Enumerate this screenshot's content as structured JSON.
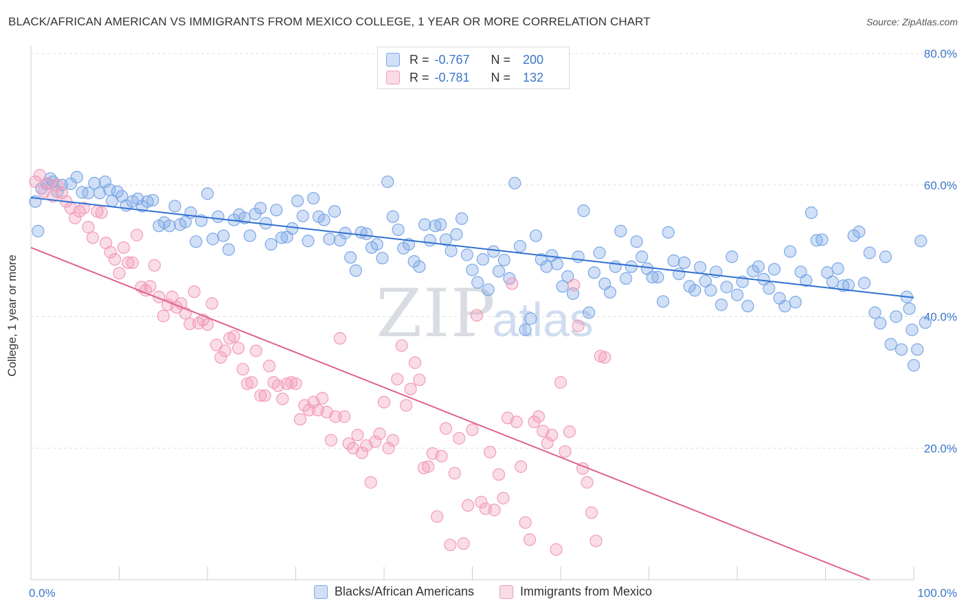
{
  "title": "BLACK/AFRICAN AMERICAN VS IMMIGRANTS FROM MEXICO COLLEGE, 1 YEAR OR MORE CORRELATION CHART",
  "source": "Source: ZipAtlas.com",
  "watermark": {
    "zip": "ZIP",
    "atlas": "atlas"
  },
  "stats": [
    {
      "r_label": "R =",
      "r_value": "-0.767",
      "n_label": "N =",
      "n_value": "200",
      "color": "#7aa6e6"
    },
    {
      "r_label": "R =",
      "r_value": "-0.781",
      "n_label": "N =",
      "n_value": "132",
      "color": "#f29ab8"
    }
  ],
  "legend": [
    {
      "label": "Blacks/African Americans",
      "color": "#7aa6e6"
    },
    {
      "label": "Immigrants from Mexico",
      "color": "#f29ab8"
    }
  ],
  "chart_data": {
    "type": "scatter",
    "title": "BLACK/AFRICAN AMERICAN VS IMMIGRANTS FROM MEXICO COLLEGE, 1 YEAR OR MORE CORRELATION CHART",
    "xlabel": "",
    "ylabel": "College, 1 year or more",
    "xlim": [
      0,
      100
    ],
    "ylim": [
      0,
      80
    ],
    "x_tick_labels": [
      "0.0%",
      "100.0%"
    ],
    "y_ticks": [
      20,
      40,
      60,
      80
    ],
    "y_tick_labels": [
      "20.0%",
      "40.0%",
      "60.0%",
      "80.0%"
    ],
    "grid": true,
    "legend_position": "bottom",
    "series": [
      {
        "name": "Blacks/African Americans",
        "color": "#7aa6e6",
        "line_color": "#2f6fd0",
        "trend": {
          "x": [
            0,
            100
          ],
          "y": [
            58.1,
            42.9
          ]
        },
        "points": [
          [
            0.5,
            57.5
          ],
          [
            0.8,
            53.0
          ],
          [
            1.2,
            59.5
          ],
          [
            1.8,
            60.2
          ],
          [
            2.2,
            61.0
          ],
          [
            2.5,
            60.5
          ],
          [
            3.0,
            59.0
          ],
          [
            3.5,
            60.0
          ],
          [
            4.5,
            60.2
          ],
          [
            5.2,
            61.2
          ],
          [
            5.8,
            58.9
          ],
          [
            6.5,
            58.8
          ],
          [
            7.2,
            60.3
          ],
          [
            7.8,
            58.8
          ],
          [
            8.4,
            60.5
          ],
          [
            8.9,
            59.3
          ],
          [
            9.2,
            57.6
          ],
          [
            9.8,
            59.0
          ],
          [
            10.3,
            58.3
          ],
          [
            10.8,
            56.9
          ],
          [
            11.5,
            57.5
          ],
          [
            12.1,
            57.9
          ],
          [
            12.6,
            56.8
          ],
          [
            13.2,
            57.5
          ],
          [
            13.8,
            57.7
          ],
          [
            14.5,
            53.8
          ],
          [
            15.1,
            54.3
          ],
          [
            15.7,
            53.8
          ],
          [
            16.3,
            56.8
          ],
          [
            16.9,
            54.0
          ],
          [
            17.5,
            54.4
          ],
          [
            18.1,
            55.8
          ],
          [
            18.7,
            51.4
          ],
          [
            19.3,
            54.6
          ],
          [
            20.0,
            58.7
          ],
          [
            20.6,
            51.8
          ],
          [
            21.2,
            55.2
          ],
          [
            21.8,
            52.3
          ],
          [
            22.4,
            50.2
          ],
          [
            23.0,
            54.7
          ],
          [
            23.6,
            55.5
          ],
          [
            24.2,
            55.0
          ],
          [
            24.8,
            52.3
          ],
          [
            25.4,
            55.6
          ],
          [
            26.0,
            56.5
          ],
          [
            26.6,
            54.2
          ],
          [
            27.2,
            51.0
          ],
          [
            27.8,
            56.2
          ],
          [
            28.4,
            52.0
          ],
          [
            29.0,
            52.1
          ],
          [
            29.6,
            53.4
          ],
          [
            30.2,
            57.6
          ],
          [
            30.8,
            55.3
          ],
          [
            31.4,
            51.5
          ],
          [
            32.0,
            58.0
          ],
          [
            32.6,
            55.2
          ],
          [
            33.2,
            54.7
          ],
          [
            33.8,
            51.8
          ],
          [
            34.4,
            56.0
          ],
          [
            35.0,
            51.6
          ],
          [
            35.6,
            52.7
          ],
          [
            36.2,
            49.0
          ],
          [
            36.8,
            47.0
          ],
          [
            37.4,
            52.8
          ],
          [
            38.0,
            52.6
          ],
          [
            38.6,
            50.5
          ],
          [
            39.2,
            51.0
          ],
          [
            39.8,
            48.9
          ],
          [
            40.4,
            60.5
          ],
          [
            41.0,
            55.2
          ],
          [
            41.6,
            53.2
          ],
          [
            42.2,
            50.4
          ],
          [
            42.8,
            51.0
          ],
          [
            43.4,
            48.4
          ],
          [
            44.0,
            47.6
          ],
          [
            44.6,
            54.0
          ],
          [
            45.2,
            51.6
          ],
          [
            45.8,
            53.8
          ],
          [
            46.4,
            54.0
          ],
          [
            47.0,
            51.7
          ],
          [
            47.6,
            50.0
          ],
          [
            48.2,
            52.5
          ],
          [
            48.8,
            54.9
          ],
          [
            49.4,
            49.4
          ],
          [
            50.0,
            47.1
          ],
          [
            50.6,
            45.2
          ],
          [
            51.2,
            48.7
          ],
          [
            51.8,
            44.1
          ],
          [
            52.4,
            49.9
          ],
          [
            53.0,
            46.9
          ],
          [
            53.6,
            48.6
          ],
          [
            54.2,
            45.8
          ],
          [
            54.8,
            60.3
          ],
          [
            55.4,
            50.7
          ],
          [
            56.0,
            38.0
          ],
          [
            56.6,
            39.7
          ],
          [
            57.2,
            52.3
          ],
          [
            57.8,
            48.7
          ],
          [
            58.4,
            47.6
          ],
          [
            59.0,
            49.3
          ],
          [
            59.6,
            48.0
          ],
          [
            60.2,
            44.6
          ],
          [
            60.8,
            46.1
          ],
          [
            61.4,
            43.5
          ],
          [
            62.0,
            49.1
          ],
          [
            62.6,
            56.1
          ],
          [
            63.2,
            40.6
          ],
          [
            63.8,
            46.7
          ],
          [
            64.4,
            49.7
          ],
          [
            65.0,
            45.0
          ],
          [
            65.6,
            43.7
          ],
          [
            66.2,
            47.6
          ],
          [
            66.8,
            53.0
          ],
          [
            67.4,
            45.8
          ],
          [
            68.0,
            47.6
          ],
          [
            68.6,
            51.4
          ],
          [
            69.2,
            49.1
          ],
          [
            69.8,
            47.3
          ],
          [
            70.4,
            46.0
          ],
          [
            71.0,
            46.0
          ],
          [
            71.6,
            42.3
          ],
          [
            72.2,
            52.8
          ],
          [
            72.8,
            48.5
          ],
          [
            73.4,
            46.5
          ],
          [
            74.0,
            48.2
          ],
          [
            74.6,
            44.6
          ],
          [
            75.2,
            44.0
          ],
          [
            75.8,
            47.5
          ],
          [
            76.4,
            45.4
          ],
          [
            77.0,
            44.0
          ],
          [
            77.6,
            46.8
          ],
          [
            78.2,
            41.8
          ],
          [
            78.8,
            44.5
          ],
          [
            79.4,
            49.1
          ],
          [
            80.0,
            43.3
          ],
          [
            80.6,
            45.3
          ],
          [
            81.2,
            41.6
          ],
          [
            81.8,
            46.9
          ],
          [
            82.4,
            47.6
          ],
          [
            83.0,
            45.7
          ],
          [
            83.6,
            44.3
          ],
          [
            84.2,
            47.2
          ],
          [
            84.8,
            42.8
          ],
          [
            85.4,
            41.6
          ],
          [
            86.0,
            49.9
          ],
          [
            86.6,
            42.2
          ],
          [
            87.2,
            46.8
          ],
          [
            87.8,
            45.5
          ],
          [
            88.4,
            55.8
          ],
          [
            89.0,
            51.6
          ],
          [
            89.6,
            51.7
          ],
          [
            90.2,
            46.7
          ],
          [
            90.8,
            45.3
          ],
          [
            91.4,
            47.3
          ],
          [
            92.0,
            44.7
          ],
          [
            92.6,
            44.8
          ],
          [
            93.2,
            52.3
          ],
          [
            93.8,
            52.9
          ],
          [
            94.4,
            45.1
          ],
          [
            95.0,
            49.7
          ],
          [
            95.6,
            40.6
          ],
          [
            96.2,
            39.0
          ],
          [
            96.8,
            49.1
          ],
          [
            97.4,
            35.8
          ],
          [
            98.0,
            40.0
          ],
          [
            98.6,
            35.0
          ],
          [
            99.2,
            43.0
          ],
          [
            99.5,
            41.2
          ],
          [
            99.8,
            38.0
          ],
          [
            100.0,
            32.6
          ],
          [
            100.4,
            35.0
          ],
          [
            100.8,
            51.5
          ],
          [
            101.3,
            39.1
          ]
        ]
      },
      {
        "name": "Immigrants from Mexico",
        "color": "#f29ab8",
        "line_color": "#e0608e",
        "trend": {
          "x": [
            0,
            95
          ],
          "y": [
            50.5,
            0
          ]
        },
        "points": [
          [
            0.5,
            60.5
          ],
          [
            1.0,
            61.5
          ],
          [
            1.5,
            59.0
          ],
          [
            2.0,
            60.2
          ],
          [
            2.5,
            58.3
          ],
          [
            3.0,
            60.0
          ],
          [
            3.5,
            58.8
          ],
          [
            4.0,
            57.5
          ],
          [
            4.5,
            56.5
          ],
          [
            5.0,
            55.0
          ],
          [
            5.5,
            56.0
          ],
          [
            6.0,
            56.5
          ],
          [
            6.5,
            53.6
          ],
          [
            7.0,
            52.0
          ],
          [
            7.5,
            56.0
          ],
          [
            8.0,
            55.8
          ],
          [
            8.5,
            51.2
          ],
          [
            9.0,
            49.8
          ],
          [
            9.5,
            48.7
          ],
          [
            10.0,
            46.6
          ],
          [
            10.5,
            50.5
          ],
          [
            11.0,
            48.2
          ],
          [
            11.5,
            48.2
          ],
          [
            12.0,
            52.4
          ],
          [
            12.5,
            44.5
          ],
          [
            13.0,
            44.0
          ],
          [
            13.5,
            44.6
          ],
          [
            14.0,
            47.8
          ],
          [
            14.5,
            43.0
          ],
          [
            15.0,
            40.1
          ],
          [
            15.5,
            41.8
          ],
          [
            16.0,
            43.0
          ],
          [
            16.5,
            41.4
          ],
          [
            17.0,
            42.0
          ],
          [
            17.5,
            40.5
          ],
          [
            18.0,
            38.9
          ],
          [
            18.5,
            43.8
          ],
          [
            19.0,
            39.0
          ],
          [
            19.5,
            39.5
          ],
          [
            20.0,
            38.8
          ],
          [
            20.5,
            42.0
          ],
          [
            21.0,
            35.7
          ],
          [
            21.5,
            33.8
          ],
          [
            22.0,
            34.8
          ],
          [
            22.5,
            36.7
          ],
          [
            23.0,
            37.0
          ],
          [
            23.5,
            35.2
          ],
          [
            24.0,
            32.0
          ],
          [
            24.5,
            29.8
          ],
          [
            25.0,
            30.0
          ],
          [
            25.5,
            34.8
          ],
          [
            26.0,
            28.0
          ],
          [
            26.5,
            28.0
          ],
          [
            27.0,
            32.5
          ],
          [
            27.5,
            30.0
          ],
          [
            28.0,
            29.5
          ],
          [
            28.5,
            27.5
          ],
          [
            29.0,
            29.8
          ],
          [
            29.5,
            30.0
          ],
          [
            30.0,
            29.8
          ],
          [
            30.5,
            24.4
          ],
          [
            31.0,
            26.5
          ],
          [
            31.5,
            25.8
          ],
          [
            32.0,
            27.0
          ],
          [
            32.5,
            25.8
          ],
          [
            33.0,
            27.6
          ],
          [
            33.5,
            25.5
          ],
          [
            34.0,
            21.2
          ],
          [
            34.5,
            24.8
          ],
          [
            35.0,
            36.7
          ],
          [
            35.5,
            24.8
          ],
          [
            36.0,
            20.7
          ],
          [
            36.5,
            20.0
          ],
          [
            37.0,
            22.0
          ],
          [
            37.5,
            19.3
          ],
          [
            38.0,
            20.4
          ],
          [
            38.5,
            14.8
          ],
          [
            39.0,
            21.0
          ],
          [
            39.5,
            22.2
          ],
          [
            40.0,
            27.0
          ],
          [
            40.5,
            20.0
          ],
          [
            41.0,
            21.2
          ],
          [
            41.5,
            30.5
          ],
          [
            42.0,
            35.6
          ],
          [
            42.5,
            26.5
          ],
          [
            43.0,
            29.0
          ],
          [
            43.5,
            33.0
          ],
          [
            44.0,
            30.4
          ],
          [
            44.5,
            17.0
          ],
          [
            45.0,
            17.2
          ],
          [
            45.5,
            19.2
          ],
          [
            46.0,
            9.6
          ],
          [
            46.5,
            18.8
          ],
          [
            47.0,
            23.0
          ],
          [
            47.5,
            5.3
          ],
          [
            48.0,
            16.2
          ],
          [
            48.5,
            21.5
          ],
          [
            49.0,
            5.5
          ],
          [
            49.5,
            11.3
          ],
          [
            50.0,
            22.8
          ],
          [
            50.5,
            40.2
          ],
          [
            51.0,
            11.8
          ],
          [
            51.5,
            10.8
          ],
          [
            52.0,
            19.4
          ],
          [
            52.5,
            10.6
          ],
          [
            53.0,
            16.0
          ],
          [
            53.5,
            12.4
          ],
          [
            54.0,
            24.6
          ],
          [
            54.5,
            45.0
          ],
          [
            55.0,
            24.0
          ],
          [
            55.5,
            17.2
          ],
          [
            56.0,
            8.7
          ],
          [
            56.5,
            6.1
          ],
          [
            57.0,
            24.0
          ],
          [
            57.5,
            24.8
          ],
          [
            58.0,
            22.6
          ],
          [
            58.5,
            20.8
          ],
          [
            59.0,
            22.0
          ],
          [
            59.5,
            4.6
          ],
          [
            60.0,
            30.0
          ],
          [
            60.5,
            19.5
          ],
          [
            61.0,
            22.5
          ],
          [
            61.5,
            44.8
          ],
          [
            62.0,
            38.6
          ],
          [
            62.5,
            16.9
          ],
          [
            63.0,
            14.8
          ],
          [
            63.5,
            10.2
          ],
          [
            64.0,
            5.9
          ],
          [
            64.5,
            34.0
          ],
          [
            65.0,
            33.8
          ]
        ]
      }
    ]
  }
}
